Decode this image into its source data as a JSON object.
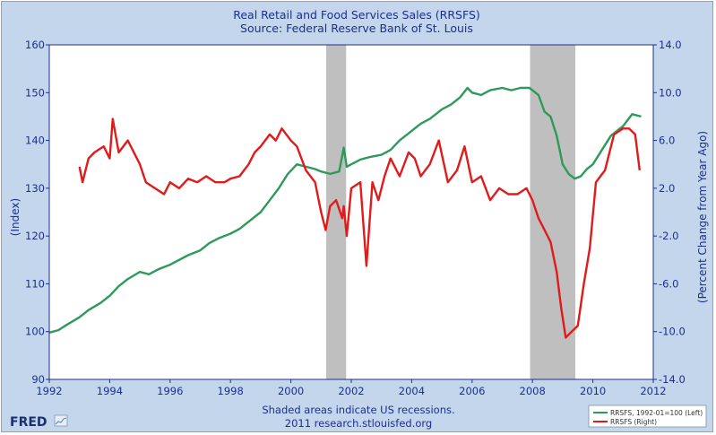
{
  "colors": {
    "background": "#c3d6ec",
    "plot_background": "#ffffff",
    "recession": "#bfbfbf",
    "series_left": "#2e9a5a",
    "series_right": "#e01b1b",
    "text": "#1c2f8f"
  },
  "footer": {
    "note_line1": "Shaded areas indicate US recessions.",
    "note_line2": "2011 research.stlouisfed.org",
    "logo": "FRED"
  },
  "chart_data": {
    "type": "line",
    "title": "Real Retail and Food Services Sales (RRSFS)",
    "subtitle": "Source: Federal Reserve Bank of St. Louis",
    "xlabel": "",
    "ylabel_left": "(Index)",
    "ylabel_right": "(Percent Change from Year Ago)",
    "xlim": [
      1992,
      2012
    ],
    "ylim_left": [
      90,
      160
    ],
    "ylim_right": [
      -14,
      14
    ],
    "x_ticks": [
      "1992",
      "1994",
      "1996",
      "1998",
      "2000",
      "2002",
      "2004",
      "2006",
      "2008",
      "2010",
      "2012"
    ],
    "y_left_ticks": [
      "90",
      "100",
      "110",
      "120",
      "130",
      "140",
      "150",
      "160"
    ],
    "y_right_ticks": [
      "-14.0",
      "-10.0",
      "-6.0",
      "-2.0",
      "2.0",
      "6.0",
      "10.0",
      "14.0"
    ],
    "grid": false,
    "legend_position": "bottom-right",
    "recessions": [
      [
        2001.17,
        2001.83
      ],
      [
        2007.92,
        2009.42
      ]
    ],
    "series": [
      {
        "name": "RRSFS, 1992-01=100 (Left)",
        "axis": "left",
        "x": [
          1992.0,
          1992.3,
          1992.6,
          1993.0,
          1993.3,
          1993.7,
          1994.0,
          1994.3,
          1994.6,
          1995.0,
          1995.3,
          1995.6,
          1996.0,
          1996.3,
          1996.6,
          1997.0,
          1997.3,
          1997.6,
          1998.0,
          1998.3,
          1998.6,
          1999.0,
          1999.3,
          1999.6,
          1999.9,
          2000.2,
          2000.5,
          2000.8,
          2001.0,
          2001.3,
          2001.6,
          2001.75,
          2001.85,
          2002.0,
          2002.3,
          2002.6,
          2003.0,
          2003.3,
          2003.6,
          2004.0,
          2004.3,
          2004.6,
          2005.0,
          2005.3,
          2005.6,
          2005.85,
          2006.0,
          2006.3,
          2006.6,
          2007.0,
          2007.3,
          2007.6,
          2007.9,
          2008.2,
          2008.4,
          2008.6,
          2008.8,
          2009.0,
          2009.2,
          2009.4,
          2009.6,
          2009.8,
          2010.0,
          2010.3,
          2010.6,
          2011.0,
          2011.3,
          2011.6
        ],
        "values": [
          99.8,
          100.3,
          101.5,
          103.0,
          104.5,
          106.0,
          107.5,
          109.5,
          111.0,
          112.5,
          112.0,
          113.0,
          114.0,
          115.0,
          116.0,
          117.0,
          118.5,
          119.5,
          120.5,
          121.5,
          123.0,
          125.0,
          127.5,
          130.0,
          133.0,
          135.0,
          134.5,
          134.0,
          133.5,
          133.0,
          133.5,
          138.5,
          134.5,
          135.0,
          136.0,
          136.5,
          137.0,
          138.0,
          140.0,
          142.0,
          143.5,
          144.5,
          146.5,
          147.5,
          149.0,
          151.0,
          150.0,
          149.5,
          150.5,
          151.0,
          150.5,
          151.0,
          151.0,
          149.5,
          146.0,
          145.0,
          141.0,
          135.0,
          133.0,
          132.0,
          132.5,
          134.0,
          135.0,
          138.0,
          141.0,
          143.0,
          145.5,
          145.0
        ]
      },
      {
        "name": "RRSFS (Right)",
        "axis": "right",
        "x": [
          1993.0,
          1993.1,
          1993.3,
          1993.5,
          1993.8,
          1994.0,
          1994.1,
          1994.3,
          1994.6,
          1994.8,
          1995.0,
          1995.2,
          1995.5,
          1995.8,
          1996.0,
          1996.3,
          1996.6,
          1996.9,
          1997.2,
          1997.5,
          1997.8,
          1998.0,
          1998.3,
          1998.6,
          1998.8,
          1999.0,
          1999.3,
          1999.5,
          1999.7,
          2000.0,
          2000.2,
          2000.5,
          2000.8,
          2001.0,
          2001.15,
          2001.3,
          2001.5,
          2001.7,
          2001.75,
          2001.85,
          2002.0,
          2002.3,
          2002.5,
          2002.7,
          2002.9,
          2003.1,
          2003.3,
          2003.6,
          2003.9,
          2004.1,
          2004.3,
          2004.6,
          2004.9,
          2005.2,
          2005.5,
          2005.75,
          2006.0,
          2006.3,
          2006.6,
          2006.9,
          2007.2,
          2007.5,
          2007.8,
          2008.0,
          2008.2,
          2008.4,
          2008.6,
          2008.8,
          2008.95,
          2009.1,
          2009.3,
          2009.5,
          2009.7,
          2009.9,
          2010.1,
          2010.4,
          2010.7,
          2011.0,
          2011.2,
          2011.4,
          2011.55
        ],
        "values": [
          3.8,
          2.5,
          4.5,
          5.0,
          5.5,
          4.5,
          7.8,
          5.0,
          6.0,
          5.0,
          4.0,
          2.5,
          2.0,
          1.5,
          2.5,
          2.0,
          2.8,
          2.5,
          3.0,
          2.5,
          2.5,
          2.8,
          3.0,
          4.0,
          5.0,
          5.5,
          6.5,
          6.0,
          7.0,
          6.0,
          5.5,
          3.5,
          2.5,
          0.0,
          -1.5,
          0.5,
          1.0,
          -0.5,
          0.5,
          -2.0,
          2.0,
          2.5,
          -4.5,
          2.5,
          1.0,
          3.0,
          4.5,
          3.0,
          5.0,
          4.5,
          3.0,
          4.0,
          6.0,
          2.5,
          3.5,
          5.5,
          2.5,
          3.0,
          1.0,
          2.0,
          1.5,
          1.5,
          2.0,
          1.0,
          -0.5,
          -1.5,
          -2.5,
          -5.0,
          -8.0,
          -10.5,
          -10.0,
          -9.5,
          -6.0,
          -3.0,
          2.5,
          3.5,
          6.5,
          7.0,
          7.0,
          6.5,
          3.5
        ]
      }
    ]
  }
}
